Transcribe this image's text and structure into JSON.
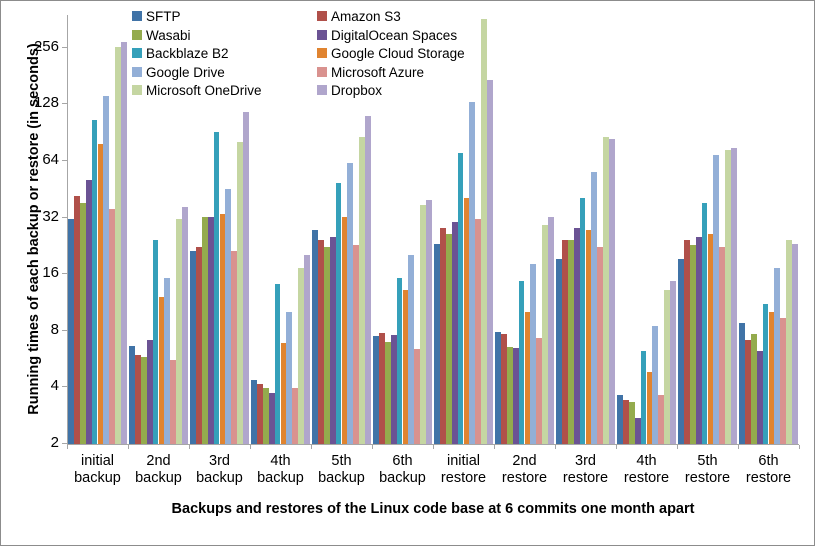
{
  "figure": {
    "y_axis_title": "Running times of each backup or restore (in seconds)",
    "x_axis_title": "Backups and restores of the Linux code base at 6 commits one month apart"
  },
  "chart_data": {
    "type": "bar",
    "title": "",
    "xlabel": "Backups and restores of the Linux code base at 6 commits one month apart",
    "ylabel": "Running times of each backup or restore (in seconds)",
    "y_scale": "log2",
    "y_ticks": [
      2,
      4,
      8,
      16,
      32,
      64,
      128,
      256
    ],
    "ylim": [
      2,
      400
    ],
    "grid": false,
    "legend_position": "top-inside-two-columns",
    "categories": [
      [
        "initial",
        "backup"
      ],
      [
        "2nd",
        "backup"
      ],
      [
        "3rd",
        "backup"
      ],
      [
        "4th",
        "backup"
      ],
      [
        "5th",
        "backup"
      ],
      [
        "6th",
        "backup"
      ],
      [
        "initial",
        "restore"
      ],
      [
        "2nd",
        "restore"
      ],
      [
        "3rd",
        "restore"
      ],
      [
        "4th",
        "restore"
      ],
      [
        "5th",
        "restore"
      ],
      [
        "6th",
        "restore"
      ]
    ],
    "series": [
      {
        "name": "SFTP",
        "color": "#4073A7",
        "values": [
          31,
          6.6,
          21,
          4.3,
          27,
          7.4,
          23,
          7.8,
          19,
          3.6,
          19,
          8.7
        ]
      },
      {
        "name": "Amazon S3",
        "color": "#B0504A",
        "values": [
          41,
          5.9,
          22,
          4.1,
          24,
          7.7,
          28,
          7.6,
          24,
          3.4,
          24,
          7.1
        ]
      },
      {
        "name": "Wasabi",
        "color": "#94AB4D",
        "values": [
          38,
          5.7,
          32,
          3.9,
          22,
          6.9,
          26,
          6.5,
          24,
          3.3,
          22.5,
          7.6
        ]
      },
      {
        "name": "DigitalOcean Spaces",
        "color": "#6B5394",
        "values": [
          50,
          7.1,
          32,
          3.7,
          25,
          7.5,
          30,
          6.4,
          28,
          2.7,
          25,
          6.2
        ]
      },
      {
        "name": "Backblaze B2",
        "color": "#35A0BA",
        "values": [
          105,
          24,
          90,
          14,
          48,
          15,
          70,
          14.5,
          40,
          6.2,
          38,
          11
        ]
      },
      {
        "name": "Google Cloud Storage",
        "color": "#E08430",
        "values": [
          78,
          12,
          33,
          6.8,
          32,
          13,
          40,
          10,
          27,
          4.8,
          26,
          10
        ]
      },
      {
        "name": "Google Drive",
        "color": "#93AFD7",
        "values": [
          140,
          15,
          45,
          9.9,
          62,
          20,
          130,
          18,
          55,
          8.4,
          68,
          17
        ]
      },
      {
        "name": "Microsoft Azure",
        "color": "#D9928F",
        "values": [
          35,
          5.5,
          21,
          3.9,
          22.5,
          6.3,
          31,
          7.2,
          22,
          3.6,
          22,
          9.3
        ]
      },
      {
        "name": "Microsoft OneDrive",
        "color": "#C5D6A2",
        "values": [
          255,
          31,
          80,
          17,
          85,
          37,
          360,
          29,
          85,
          13,
          72,
          24
        ]
      },
      {
        "name": "Dropbox",
        "color": "#B0A6CC",
        "values": [
          270,
          36,
          115,
          20,
          110,
          39,
          170,
          32,
          83,
          14.5,
          74,
          23
        ]
      }
    ]
  }
}
